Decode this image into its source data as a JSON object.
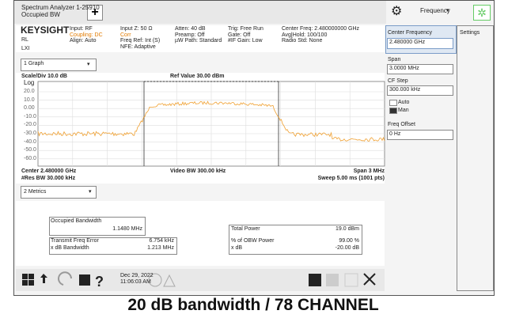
{
  "header": {
    "app_title": "Spectrum Analyzer 1-25910",
    "mode": "Occupied BW",
    "menu": "Frequency"
  },
  "status": {
    "brand": "KEYSIGHT",
    "rl": "RL",
    "lxi": "LXI",
    "col1": [
      "Input: RF",
      "Coupling: DC",
      "Align: Auto"
    ],
    "col2": [
      "Input Z: 50 Ω",
      "Corr",
      "Freq Ref: Int (S)",
      "NFE: Adaptive"
    ],
    "col3": [
      "Atten: 40 dB",
      "Preamp: Off",
      "µW Path: Standard"
    ],
    "col4": [
      "Trig: Free Run",
      "Gate: Off",
      "#IF Gain: Low"
    ],
    "col5": [
      "Center Freq: 2.480000000 GHz",
      "Avg|Hold: 100/100",
      "Radio Std: None"
    ]
  },
  "graph": {
    "selector": "1 Graph",
    "scale": "Scale/Div 10.0 dB",
    "ref": "Ref Value 30.00 dBm",
    "log": "Log",
    "y_labels": [
      "20.0",
      "10.0",
      "0.00",
      "-10.0",
      "-20.0",
      "-30.0",
      "-40.0",
      "-50.0",
      "-60.0"
    ],
    "center": "Center 2.480000 GHz",
    "video_bw": "Video BW 300.00 kHz",
    "span": "Span 3 MHz",
    "res_bw": "#Res BW 30.000 kHz",
    "sweep": "Sweep 5.00 ms (1001 pts)"
  },
  "metrics": {
    "selector": "2 Metrics",
    "obw_label": "Occupied Bandwidth",
    "obw_value": "1.1480 MHz",
    "left_rows": [
      [
        "Transmit Freq Error",
        "6.754 kHz"
      ],
      [
        "x dB Bandwidth",
        "1.213 MHz"
      ]
    ],
    "right_rows": [
      [
        "Total Power",
        "19.0 dBm"
      ],
      [
        "% of OBW Power",
        "99.00 %"
      ],
      [
        "x dB",
        "-20.00 dB"
      ]
    ]
  },
  "taskbar": {
    "date": "Dec 29, 2022",
    "time": "11:06:03 AM"
  },
  "panel": {
    "tab": "Center Frequency",
    "tab_value": "2.480000 GHz",
    "settings": "Settings",
    "span_label": "Span",
    "span_value": "3.0000 MHz",
    "cf_step_label": "CF Step",
    "cf_step_value": "300.000 kHz",
    "auto": "Auto",
    "man": "Man",
    "freq_offset_label": "Freq Offset",
    "freq_offset_value": "0 Hz"
  },
  "caption": "20 dB bandwidth / 78 CHANNEL"
}
